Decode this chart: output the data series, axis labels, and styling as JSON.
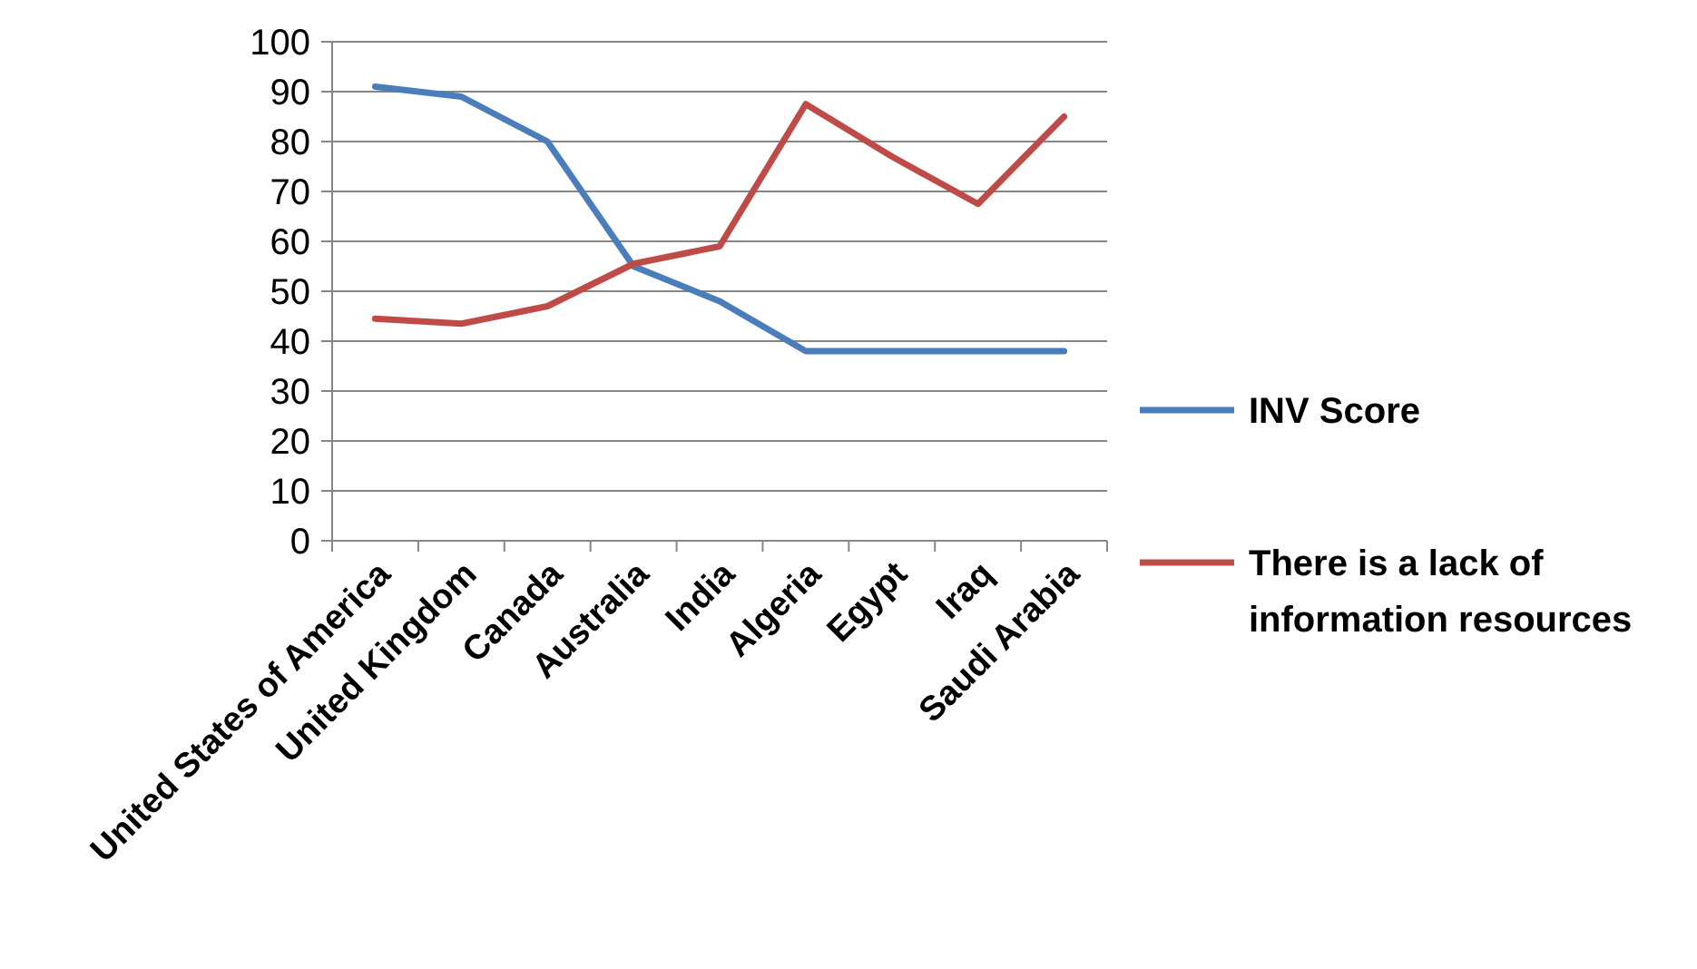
{
  "chart_data": {
    "type": "line",
    "categories": [
      "United States of America",
      "United Kingdom",
      "Canada",
      "Australia",
      "India",
      "Algeria",
      "Egypt",
      "Iraq",
      "Saudi Arabia"
    ],
    "series": [
      {
        "name": "INV Score",
        "color": "#4a7ebb",
        "values": [
          91,
          89,
          80,
          55,
          48,
          38,
          38,
          38,
          38
        ]
      },
      {
        "name": "There is a lack of information resources",
        "color": "#be4b48",
        "values": [
          44.5,
          43.5,
          47,
          55.5,
          59,
          87.5,
          77,
          67.5,
          85
        ]
      }
    ],
    "ylim": [
      0,
      100
    ],
    "yticks": [
      0,
      10,
      20,
      30,
      40,
      50,
      60,
      70,
      80,
      90,
      100
    ],
    "grid": "y",
    "legend": "right",
    "marker": "none",
    "line_style": "solid"
  }
}
